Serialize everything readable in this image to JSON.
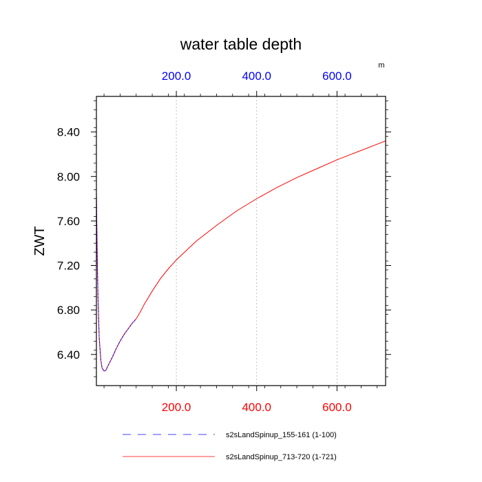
{
  "chart_data": {
    "type": "line",
    "title": "water table depth",
    "ylabel": "ZWT",
    "top_axis_units": "m",
    "xlim": [
      1,
      721
    ],
    "ylim": [
      6.12,
      8.72
    ],
    "x_ticks": [
      200,
      400,
      600
    ],
    "x_tick_labels": [
      "200.0",
      "400.0",
      "600.0"
    ],
    "y_ticks": [
      6.4,
      6.8,
      7.2,
      7.6,
      8.0,
      8.4
    ],
    "y_tick_labels": [
      "6.40",
      "6.80",
      "7.20",
      "7.60",
      "8.00",
      "8.40"
    ],
    "bottom_tick_color": "#ff0000",
    "top_tick_color": "#0000ff",
    "grid": "dashed vertical at x ticks",
    "legend_placement": "bottom",
    "series": [
      {
        "name": "s2sLandSpinup_155-161 (1-100)",
        "color": "#0000ff",
        "dash": "dashed",
        "x": [
          1,
          3,
          5,
          8,
          12,
          15,
          20,
          25,
          30,
          40,
          50,
          60,
          70,
          80,
          90,
          100
        ],
        "y": [
          7.85,
          7.3,
          6.9,
          6.55,
          6.35,
          6.28,
          6.25,
          6.26,
          6.3,
          6.37,
          6.45,
          6.52,
          6.58,
          6.63,
          6.68,
          6.72
        ]
      },
      {
        "name": "s2sLandSpinup_713-720 (1-721)",
        "color": "#ff0000",
        "dash": "solid",
        "x": [
          1,
          3,
          5,
          8,
          12,
          15,
          20,
          25,
          30,
          40,
          50,
          60,
          70,
          80,
          90,
          100,
          110,
          120,
          140,
          160,
          180,
          200,
          250,
          300,
          350,
          400,
          450,
          500,
          550,
          600,
          650,
          700,
          721
        ],
        "y": [
          7.85,
          7.3,
          6.9,
          6.55,
          6.35,
          6.28,
          6.25,
          6.26,
          6.3,
          6.37,
          6.45,
          6.52,
          6.58,
          6.63,
          6.68,
          6.72,
          6.78,
          6.85,
          6.97,
          7.08,
          7.17,
          7.25,
          7.42,
          7.56,
          7.69,
          7.8,
          7.9,
          7.99,
          8.07,
          8.15,
          8.22,
          8.29,
          8.32
        ]
      }
    ]
  }
}
